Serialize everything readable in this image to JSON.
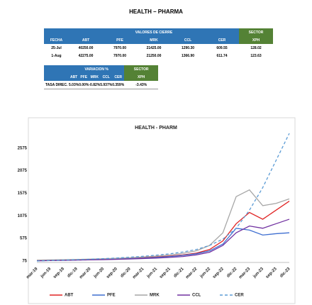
{
  "header": {
    "title": "HEALTH – PHARMA"
  },
  "table1": {
    "group_header": "VALORES DE CIERRE",
    "sector_header": "SECTOR",
    "columns": [
      "FECHA",
      "ABT",
      "PFE",
      "MRK",
      "CCL",
      "CER",
      "XPH"
    ],
    "rows": [
      [
        "25-Jul",
        "40250.00",
        "7970.00",
        "21425.00",
        "1290.30",
        "609.55",
        "128.02"
      ],
      [
        "1-Aug",
        "42275.00",
        "7970.00",
        "21250.00",
        "1366.90",
        "611.74",
        "123.63"
      ]
    ]
  },
  "table2": {
    "group_header": "VARIACION %",
    "sector_header": "SECTOR",
    "columns": [
      "ABT",
      "PFE",
      "MRK",
      "CCL",
      "CER",
      "XPH"
    ],
    "row_label": "TASA DIREC.",
    "row": [
      "5.03%",
      "0.00%",
      "-0.82%",
      "5.937%",
      "0.359%",
      "-3.43%"
    ]
  },
  "chart_data": {
    "type": "line",
    "title": "HEALTH - PHARM",
    "categories": [
      "mar-19",
      "jun-19",
      "sep-19",
      "dic-19",
      "mar-20",
      "jun-20",
      "sep-20",
      "dic-20",
      "mar-21",
      "jun-21",
      "sep-21",
      "dic-21",
      "mar-22",
      "jun-22",
      "sep-22",
      "dic-22",
      "mar-23",
      "jun-23",
      "sep-23",
      "dic-23"
    ],
    "series": [
      {
        "name": "ABT",
        "color": "#e02424",
        "values": [
          90,
          95,
          100,
          105,
          110,
          115,
          125,
          135,
          150,
          165,
          185,
          210,
          250,
          330,
          520,
          900,
          1150,
          1000,
          1200,
          1400
        ]
      },
      {
        "name": "PFE",
        "color": "#3f6fd1",
        "values": [
          85,
          90,
          95,
          100,
          105,
          110,
          118,
          128,
          140,
          155,
          175,
          200,
          235,
          300,
          450,
          800,
          760,
          650,
          680,
          700
        ]
      },
      {
        "name": "MRK",
        "color": "#a6a6a6",
        "values": [
          95,
          100,
          105,
          110,
          118,
          125,
          135,
          148,
          165,
          185,
          210,
          245,
          300,
          420,
          700,
          1500,
          1650,
          1300,
          1350,
          1450
        ]
      },
      {
        "name": "CCL",
        "color": "#7030a0",
        "values": [
          80,
          85,
          90,
          95,
          100,
          105,
          112,
          120,
          130,
          140,
          155,
          175,
          210,
          270,
          420,
          700,
          850,
          800,
          900,
          1000
        ]
      },
      {
        "name": "CER",
        "color": "#5b9bd5",
        "dash": true,
        "values": [
          75,
          85,
          95,
          105,
          115,
          128,
          142,
          160,
          180,
          205,
          235,
          275,
          330,
          420,
          560,
          800,
          1200,
          1700,
          2300,
          2900
        ]
      }
    ],
    "ylim": [
      75,
      2900
    ],
    "yticks": [
      75,
      575,
      1075,
      1575,
      2075,
      2575
    ]
  }
}
